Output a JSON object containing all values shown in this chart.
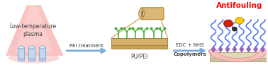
{
  "title": "Antifouling",
  "title_color": "#ff0000",
  "bg_color": "#ffffff",
  "step1_label": "Low-temperature\nplasma",
  "step1_label_color": "#404040",
  "arrow1_label": "PEI treatment",
  "arrow1_color": "#7aaadd",
  "step2_label": "PU/PEI",
  "step2_label_color": "#404040",
  "arrow2_label1": "EDC + NHS",
  "arrow2_label2": "Copolymers",
  "arrow2_color": "#7aaadd",
  "plasma_cone_color": "#f8aaaa",
  "plasma_inner_color": "#fdd5d5",
  "plasma_ellipse_color": "#f5b8b8",
  "cyl_face_color": "#e8c898",
  "cyl_body_color": "#dbb878",
  "slab_top_color": "#d4b06a",
  "slab_side_color": "#c8a450",
  "pei_color": "#44aa33",
  "polymer_color": "#5577ee",
  "anchor_color": "#9966cc",
  "skin_color": "#f8c0c0",
  "rbc_color": "#cc2200",
  "platelet_color": "#ffcc00",
  "bact_color": "#333333",
  "figwidth": 3.78,
  "figheight": 1.13,
  "dpi": 100
}
